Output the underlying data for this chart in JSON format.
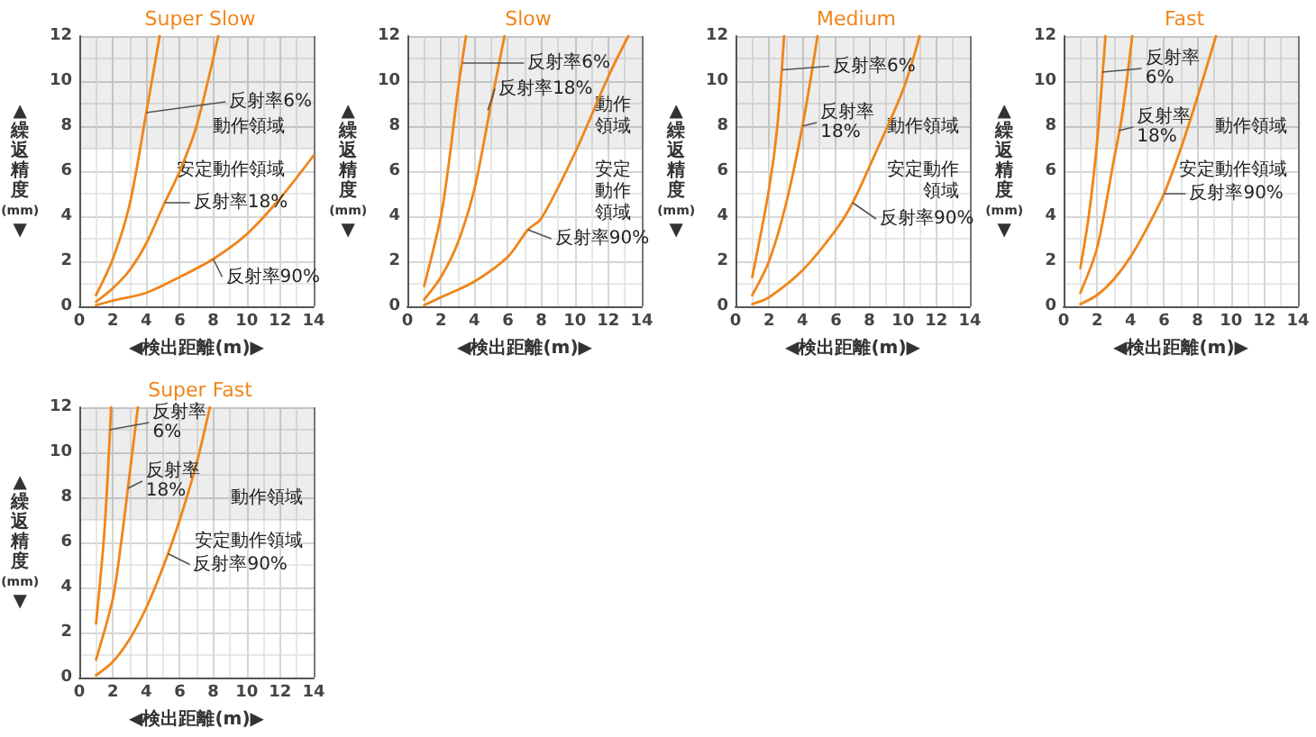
{
  "chart_data": [
    {
      "type": "line",
      "title": "Super Slow",
      "xlabel": "◀検出距離(m)▶",
      "ylabel": "▲繰返精度(mm)▼",
      "xlim": [
        0,
        14
      ],
      "ylim": [
        0,
        12
      ],
      "xticks": [
        0,
        2,
        4,
        6,
        8,
        10,
        12,
        14
      ],
      "yticks": [
        0,
        2,
        4,
        6,
        8,
        10,
        12
      ],
      "grid": true,
      "marker": "none",
      "bands": [
        {
          "axis": "y",
          "from": 7,
          "to": 12,
          "label": "動作領域",
          "color": "#e6e6e6"
        },
        {
          "axis": "y",
          "from": 0,
          "to": 7,
          "label": "安定動作領域",
          "color": "#ffffff"
        }
      ],
      "series": [
        {
          "color": "#f08519",
          "x": [
            1,
            2,
            3,
            4,
            4.8
          ],
          "values": [
            0.5,
            2.1,
            4.5,
            8.6,
            12
          ]
        },
        {
          "color": "#f08519",
          "x": [
            1,
            2,
            3,
            4,
            5.1,
            6,
            7,
            8.3
          ],
          "values": [
            0.2,
            0.8,
            1.6,
            2.8,
            4.6,
            6,
            8,
            12
          ]
        },
        {
          "color": "#f08519",
          "x": [
            1,
            2,
            4,
            6,
            8,
            10,
            12,
            14
          ],
          "values": [
            0.05,
            0.25,
            0.6,
            1.3,
            2.1,
            3.2,
            4.8,
            6.7
          ]
        }
      ],
      "annotations": [
        {
          "text": "反射率6%",
          "x": 4,
          "y": 8.6
        },
        {
          "text": "反射率18%",
          "x": 5.1,
          "y": 4.6
        },
        {
          "text": "反射率90%",
          "x": 8,
          "y": 2.1
        }
      ]
    },
    {
      "type": "line",
      "title": "Slow",
      "xlabel": "◀検出距離(m)▶",
      "ylabel": "▲繰返精度(mm)▼",
      "xlim": [
        0,
        14
      ],
      "ylim": [
        0,
        12
      ],
      "xticks": [
        0,
        2,
        4,
        6,
        8,
        10,
        12,
        14
      ],
      "yticks": [
        0,
        2,
        4,
        6,
        8,
        10,
        12
      ],
      "grid": true,
      "marker": "none",
      "bands": [
        {
          "axis": "y",
          "from": 7,
          "to": 12,
          "label": "動作領域",
          "color": "#e6e6e6"
        },
        {
          "axis": "y",
          "from": 0,
          "to": 7,
          "label": "安定動作領域",
          "color": "#ffffff"
        }
      ],
      "series": [
        {
          "color": "#f08519",
          "x": [
            1,
            2,
            2.5,
            3,
            3.5
          ],
          "values": [
            0.9,
            4,
            6.5,
            9.5,
            12
          ]
        },
        {
          "color": "#f08519",
          "x": [
            1,
            2,
            3,
            4,
            5,
            5.8
          ],
          "values": [
            0.3,
            1.3,
            2.8,
            5.2,
            9,
            12
          ]
        },
        {
          "color": "#f08519",
          "x": [
            1,
            2,
            4,
            6,
            7.2,
            8,
            10,
            12,
            13.2
          ],
          "values": [
            0.05,
            0.4,
            1.1,
            2.2,
            3.4,
            3.9,
            6.8,
            10.2,
            12
          ]
        }
      ],
      "annotations": [
        {
          "text": "反射率6%",
          "x": 3.3,
          "y": 10.8
        },
        {
          "text": "反射率18%",
          "x": 4.8,
          "y": 8.7
        },
        {
          "text": "反射率90%",
          "x": 7.2,
          "y": 3.4
        }
      ]
    },
    {
      "type": "line",
      "title": "Medium",
      "xlabel": "◀検出距離(m)▶",
      "ylabel": "▲繰返精度(mm)▼",
      "xlim": [
        0,
        14
      ],
      "ylim": [
        0,
        12
      ],
      "xticks": [
        0,
        2,
        4,
        6,
        8,
        10,
        12,
        14
      ],
      "yticks": [
        0,
        2,
        4,
        6,
        8,
        10,
        12
      ],
      "grid": true,
      "marker": "none",
      "bands": [
        {
          "axis": "y",
          "from": 7,
          "to": 12,
          "label": "動作領域",
          "color": "#e6e6e6"
        },
        {
          "axis": "y",
          "from": 0,
          "to": 7,
          "label": "安定動作領域",
          "color": "#ffffff"
        }
      ],
      "series": [
        {
          "color": "#f08519",
          "x": [
            1,
            2,
            2.5,
            2.9
          ],
          "values": [
            1.3,
            5.2,
            8,
            12
          ]
        },
        {
          "color": "#f08519",
          "x": [
            1,
            2,
            3,
            4,
            4.9
          ],
          "values": [
            0.5,
            2,
            4.5,
            8,
            12
          ]
        },
        {
          "color": "#f08519",
          "x": [
            1,
            2,
            4,
            6,
            7,
            8,
            10,
            11
          ],
          "values": [
            0.1,
            0.4,
            1.6,
            3.4,
            4.6,
            6.2,
            9.6,
            12
          ]
        }
      ],
      "annotations": [
        {
          "text": "反射率6%",
          "x": 2.8,
          "y": 10.5
        },
        {
          "text": "反射率18%",
          "x": 4,
          "y": 8
        },
        {
          "text": "反射率90%",
          "x": 7,
          "y": 4.6
        }
      ]
    },
    {
      "type": "line",
      "title": "Fast",
      "xlabel": "◀検出距離(m)▶",
      "ylabel": "▲繰返精度(mm)▼",
      "xlim": [
        0,
        14
      ],
      "ylim": [
        0,
        12
      ],
      "xticks": [
        0,
        2,
        4,
        6,
        8,
        10,
        12,
        14
      ],
      "yticks": [
        0,
        2,
        4,
        6,
        8,
        10,
        12
      ],
      "grid": true,
      "marker": "none",
      "bands": [
        {
          "axis": "y",
          "from": 7,
          "to": 12,
          "label": "動作領域",
          "color": "#e6e6e6"
        },
        {
          "axis": "y",
          "from": 0,
          "to": 7,
          "label": "安定動作領域",
          "color": "#ffffff"
        }
      ],
      "series": [
        {
          "color": "#f08519",
          "x": [
            1,
            1.5,
            2,
            2.4,
            2.5
          ],
          "values": [
            1.7,
            4,
            7.3,
            11,
            12
          ]
        },
        {
          "color": "#f08519",
          "x": [
            1,
            2,
            3,
            3.5,
            4.1
          ],
          "values": [
            0.6,
            2.6,
            6.5,
            8.5,
            12
          ]
        },
        {
          "color": "#f08519",
          "x": [
            1,
            2,
            3,
            4,
            5,
            6,
            7,
            8,
            9.1
          ],
          "values": [
            0.1,
            0.5,
            1.2,
            2.2,
            3.5,
            5,
            7,
            9.3,
            12
          ]
        }
      ],
      "annotations": [
        {
          "text": "反射率6%",
          "x": 2.3,
          "y": 10.4
        },
        {
          "text": "反射率18%",
          "x": 3.3,
          "y": 7.8
        },
        {
          "text": "反射率90%",
          "x": 6,
          "y": 5
        }
      ]
    },
    {
      "type": "line",
      "title": "Super Fast",
      "xlabel": "◀検出距離(m)▶",
      "ylabel": "▲繰返精度(mm)▼",
      "xlim": [
        0,
        14
      ],
      "ylim": [
        0,
        12
      ],
      "xticks": [
        0,
        2,
        4,
        6,
        8,
        10,
        12,
        14
      ],
      "yticks": [
        0,
        2,
        4,
        6,
        8,
        10,
        12
      ],
      "grid": true,
      "marker": "none",
      "bands": [
        {
          "axis": "y",
          "from": 7,
          "to": 12,
          "label": "動作領域",
          "color": "#e6e6e6"
        },
        {
          "axis": "y",
          "from": 0,
          "to": 7,
          "label": "安定動作領域",
          "color": "#ffffff"
        }
      ],
      "series": [
        {
          "color": "#f08519",
          "x": [
            1,
            1.5,
            1.9
          ],
          "values": [
            2.4,
            6.5,
            12
          ]
        },
        {
          "color": "#f08519",
          "x": [
            1,
            2,
            2.5,
            3,
            3.5
          ],
          "values": [
            0.8,
            3.5,
            6,
            9,
            12
          ]
        },
        {
          "color": "#f08519",
          "x": [
            1,
            2,
            3,
            4,
            5,
            6,
            7,
            7.8
          ],
          "values": [
            0.1,
            0.7,
            1.7,
            3.1,
            4.9,
            7,
            9.5,
            12
          ]
        }
      ],
      "annotations": [
        {
          "text": "反射率6%",
          "x": 1.8,
          "y": 11
        },
        {
          "text": "反射率18%",
          "x": 2.9,
          "y": 8.4
        },
        {
          "text": "反射率90%",
          "x": 5.3,
          "y": 5.5
        }
      ]
    }
  ]
}
